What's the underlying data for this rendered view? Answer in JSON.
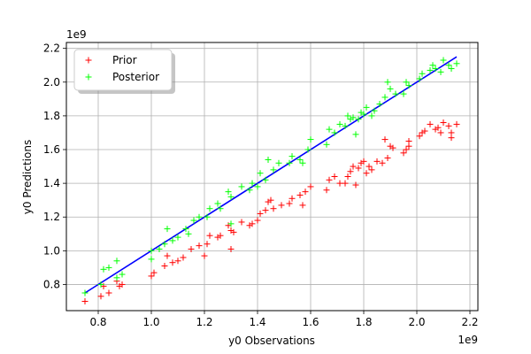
{
  "chart_data": {
    "type": "scatter",
    "xlabel": "y0 Observations",
    "ylabel": "y0 Predictions",
    "x_offset_text": "1e9",
    "y_offset_text": "1e9",
    "xlim": [
      0.68,
      2.23
    ],
    "ylim": [
      0.645,
      2.235
    ],
    "xticks": [
      0.8,
      1.0,
      1.2,
      1.4,
      1.6,
      1.8,
      2.0,
      2.2
    ],
    "xtick_labels": [
      "0.8",
      "1.0",
      "1.2",
      "1.4",
      "1.6",
      "1.8",
      "2.0",
      "2.2"
    ],
    "yticks": [
      0.8,
      1.0,
      1.2,
      1.4,
      1.6,
      1.8,
      2.0,
      2.2
    ],
    "ytick_labels": [
      "0.8",
      "1.0",
      "1.2",
      "1.4",
      "1.6",
      "1.8",
      "2.0",
      "2.2"
    ],
    "grid": true,
    "legend_position": "top-left",
    "reference_line": {
      "color": "#0000ff",
      "x": [
        0.75,
        2.15
      ],
      "y": [
        0.75,
        2.15
      ]
    },
    "series": [
      {
        "name": "Prior",
        "color": "#ff0000",
        "marker": "plus",
        "points": [
          [
            0.75,
            0.7
          ],
          [
            0.81,
            0.73
          ],
          [
            0.84,
            0.75
          ],
          [
            0.82,
            0.79
          ],
          [
            0.87,
            0.82
          ],
          [
            0.88,
            0.79
          ],
          [
            0.89,
            0.8
          ],
          [
            1.0,
            0.85
          ],
          [
            1.01,
            0.87
          ],
          [
            1.05,
            0.91
          ],
          [
            1.06,
            0.97
          ],
          [
            1.08,
            0.93
          ],
          [
            1.1,
            0.94
          ],
          [
            1.12,
            0.96
          ],
          [
            1.15,
            1.01
          ],
          [
            1.18,
            1.03
          ],
          [
            1.2,
            0.97
          ],
          [
            1.21,
            1.04
          ],
          [
            1.22,
            1.09
          ],
          [
            1.25,
            1.08
          ],
          [
            1.26,
            1.09
          ],
          [
            1.29,
            1.15
          ],
          [
            1.3,
            1.12
          ],
          [
            1.31,
            1.11
          ],
          [
            1.3,
            1.01
          ],
          [
            1.34,
            1.17
          ],
          [
            1.37,
            1.15
          ],
          [
            1.38,
            1.16
          ],
          [
            1.4,
            1.18
          ],
          [
            1.41,
            1.22
          ],
          [
            1.43,
            1.24
          ],
          [
            1.44,
            1.29
          ],
          [
            1.45,
            1.3
          ],
          [
            1.46,
            1.25
          ],
          [
            1.49,
            1.27
          ],
          [
            1.52,
            1.28
          ],
          [
            1.53,
            1.31
          ],
          [
            1.56,
            1.33
          ],
          [
            1.57,
            1.27
          ],
          [
            1.58,
            1.35
          ],
          [
            1.6,
            1.38
          ],
          [
            1.66,
            1.36
          ],
          [
            1.67,
            1.42
          ],
          [
            1.69,
            1.44
          ],
          [
            1.71,
            1.4
          ],
          [
            1.73,
            1.4
          ],
          [
            1.74,
            1.44
          ],
          [
            1.75,
            1.47
          ],
          [
            1.76,
            1.5
          ],
          [
            1.77,
            1.39
          ],
          [
            1.78,
            1.49
          ],
          [
            1.79,
            1.52
          ],
          [
            1.8,
            1.53
          ],
          [
            1.81,
            1.46
          ],
          [
            1.82,
            1.5
          ],
          [
            1.83,
            1.48
          ],
          [
            1.85,
            1.53
          ],
          [
            1.87,
            1.52
          ],
          [
            1.88,
            1.66
          ],
          [
            1.89,
            1.55
          ],
          [
            1.9,
            1.62
          ],
          [
            1.91,
            1.61
          ],
          [
            1.95,
            1.58
          ],
          [
            1.96,
            1.6
          ],
          [
            1.97,
            1.62
          ],
          [
            1.97,
            1.65
          ],
          [
            2.01,
            1.68
          ],
          [
            2.02,
            1.7
          ],
          [
            2.03,
            1.71
          ],
          [
            2.05,
            1.75
          ],
          [
            2.07,
            1.72
          ],
          [
            2.08,
            1.73
          ],
          [
            2.09,
            1.7
          ],
          [
            2.1,
            1.76
          ],
          [
            2.12,
            1.74
          ],
          [
            2.13,
            1.67
          ],
          [
            2.13,
            1.7
          ],
          [
            2.15,
            1.75
          ]
        ]
      },
      {
        "name": "Posterior",
        "color": "#00ff00",
        "marker": "plus",
        "points": [
          [
            0.75,
            0.75
          ],
          [
            0.81,
            0.8
          ],
          [
            0.82,
            0.89
          ],
          [
            0.84,
            0.9
          ],
          [
            0.87,
            0.94
          ],
          [
            0.87,
            0.84
          ],
          [
            0.89,
            0.86
          ],
          [
            1.0,
            0.95
          ],
          [
            1.0,
            1.0
          ],
          [
            1.03,
            1.01
          ],
          [
            1.05,
            1.04
          ],
          [
            1.06,
            1.13
          ],
          [
            1.08,
            1.06
          ],
          [
            1.1,
            1.08
          ],
          [
            1.13,
            1.13
          ],
          [
            1.14,
            1.1
          ],
          [
            1.16,
            1.18
          ],
          [
            1.18,
            1.2
          ],
          [
            1.21,
            1.2
          ],
          [
            1.22,
            1.25
          ],
          [
            1.25,
            1.28
          ],
          [
            1.26,
            1.25
          ],
          [
            1.29,
            1.35
          ],
          [
            1.3,
            1.32
          ],
          [
            1.3,
            1.16
          ],
          [
            1.34,
            1.38
          ],
          [
            1.37,
            1.36
          ],
          [
            1.38,
            1.4
          ],
          [
            1.4,
            1.38
          ],
          [
            1.41,
            1.46
          ],
          [
            1.43,
            1.42
          ],
          [
            1.44,
            1.54
          ],
          [
            1.46,
            1.48
          ],
          [
            1.48,
            1.52
          ],
          [
            1.52,
            1.52
          ],
          [
            1.53,
            1.56
          ],
          [
            1.56,
            1.54
          ],
          [
            1.57,
            1.52
          ],
          [
            1.59,
            1.6
          ],
          [
            1.6,
            1.66
          ],
          [
            1.66,
            1.63
          ],
          [
            1.67,
            1.72
          ],
          [
            1.69,
            1.7
          ],
          [
            1.71,
            1.75
          ],
          [
            1.73,
            1.74
          ],
          [
            1.74,
            1.8
          ],
          [
            1.75,
            1.78
          ],
          [
            1.76,
            1.79
          ],
          [
            1.77,
            1.69
          ],
          [
            1.78,
            1.78
          ],
          [
            1.79,
            1.82
          ],
          [
            1.8,
            1.81
          ],
          [
            1.81,
            1.85
          ],
          [
            1.83,
            1.8
          ],
          [
            1.84,
            1.83
          ],
          [
            1.86,
            1.87
          ],
          [
            1.88,
            1.91
          ],
          [
            1.89,
            2.0
          ],
          [
            1.9,
            1.96
          ],
          [
            1.92,
            1.93
          ],
          [
            1.95,
            1.93
          ],
          [
            1.96,
            2.0
          ],
          [
            1.97,
            1.98
          ],
          [
            2.01,
            2.02
          ],
          [
            2.02,
            2.05
          ],
          [
            2.05,
            2.07
          ],
          [
            2.06,
            2.1
          ],
          [
            2.07,
            2.08
          ],
          [
            2.09,
            2.06
          ],
          [
            2.1,
            2.13
          ],
          [
            2.12,
            2.1
          ],
          [
            2.13,
            2.08
          ],
          [
            2.15,
            2.11
          ]
        ]
      }
    ]
  }
}
